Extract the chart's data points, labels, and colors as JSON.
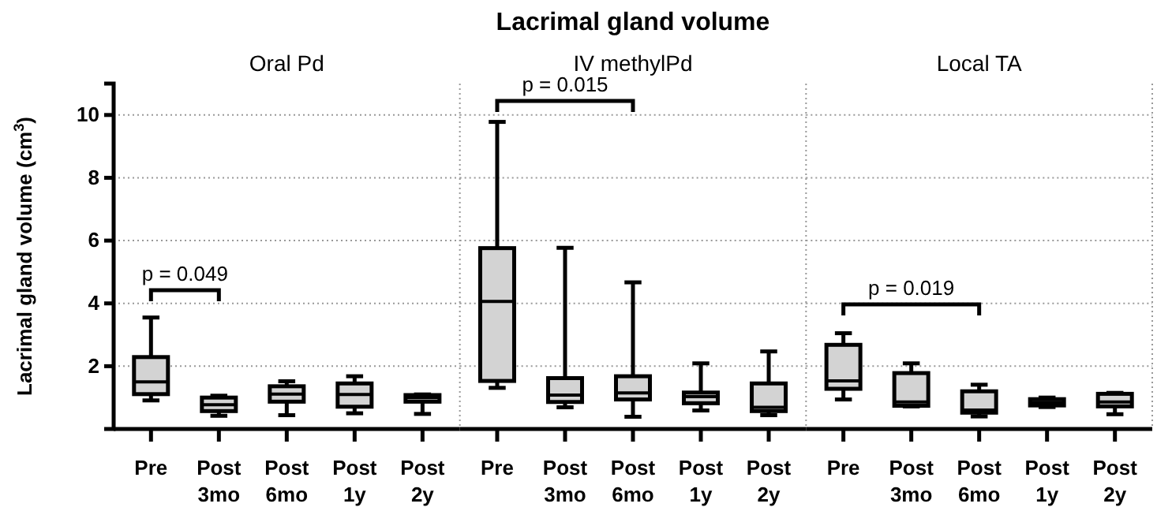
{
  "chart_data": [
    {
      "type": "box",
      "subtitle": "Oral Pd",
      "ylabel": "Lacrimal gland volume (cm$^{3}$)",
      "categories": [
        "Pre",
        "Post 3mo",
        "Post 6mo",
        "Post 1y",
        "Post 2y"
      ],
      "ylim": [
        0,
        11
      ],
      "yticks": [
        2,
        4,
        6,
        8,
        10
      ],
      "grid": "y",
      "annotations": [
        "p = 0.049"
      ],
      "series": [
        {
          "color": "#d3d3d3",
          "boxes": [
            {
              "low": 0.91,
              "q1": 1.11,
              "median": 1.5,
              "q3": 2.29,
              "high": 3.55
            },
            {
              "low": 0.42,
              "q1": 0.57,
              "median": 0.77,
              "q3": 1.0,
              "high": 1.06
            },
            {
              "low": 0.44,
              "q1": 0.87,
              "median": 1.11,
              "q3": 1.36,
              "high": 1.52
            },
            {
              "low": 0.5,
              "q1": 0.71,
              "median": 1.1,
              "q3": 1.45,
              "high": 1.68
            },
            {
              "low": 0.48,
              "q1": 0.87,
              "median": 1.0,
              "q3": 1.08,
              "high": 1.1
            }
          ]
        }
      ]
    },
    {
      "type": "box",
      "title": "Lacrimal gland volume",
      "subtitle": "IV methylPd",
      "categories": [
        "Pre",
        "Post 3mo",
        "Post 6mo",
        "Post 1y",
        "Post 2y"
      ],
      "ylim": [
        0,
        11
      ],
      "yticks": [
        2,
        4,
        6,
        8,
        10
      ],
      "grid": "y",
      "tick_labels": "x",
      "annotations": [
        "p = 0.015"
      ],
      "series": [
        {
          "color": "#d3d3d3",
          "boxes": [
            {
              "low": 1.31,
              "q1": 1.53,
              "median": 4.06,
              "q3": 5.76,
              "high": 9.78
            },
            {
              "low": 0.69,
              "q1": 0.86,
              "median": 1.08,
              "q3": 1.62,
              "high": 5.77
            },
            {
              "low": 0.39,
              "q1": 0.94,
              "median": 1.15,
              "q3": 1.68,
              "high": 4.67
            },
            {
              "low": 0.59,
              "q1": 0.82,
              "median": 1.03,
              "q3": 1.16,
              "high": 2.09
            },
            {
              "low": 0.44,
              "q1": 0.57,
              "median": 0.69,
              "q3": 1.45,
              "high": 2.47
            }
          ]
        }
      ]
    },
    {
      "type": "box",
      "subtitle": "Local TA",
      "categories": [
        "Pre",
        "Post 3mo",
        "Post 6mo",
        "Post 1y",
        "Post 2y"
      ],
      "ylim": [
        0,
        11
      ],
      "yticks": [
        2,
        4,
        6,
        8,
        10
      ],
      "grid": "y",
      "tick_labels": "x",
      "annotations": [
        "p = 0.019"
      ],
      "series": [
        {
          "color": "#d3d3d3",
          "boxes": [
            {
              "low": 0.94,
              "q1": 1.28,
              "median": 1.53,
              "q3": 2.68,
              "high": 3.05
            },
            {
              "low": 0.72,
              "q1": 0.74,
              "median": 0.86,
              "q3": 1.78,
              "high": 2.09
            },
            {
              "low": 0.4,
              "q1": 0.52,
              "median": 0.6,
              "q3": 1.2,
              "high": 1.41
            },
            {
              "low": 0.7,
              "q1": 0.75,
              "median": 0.85,
              "q3": 0.95,
              "high": 1.0
            },
            {
              "low": 0.47,
              "q1": 0.72,
              "median": 0.86,
              "q3": 1.12,
              "high": 1.15
            }
          ]
        }
      ]
    }
  ]
}
